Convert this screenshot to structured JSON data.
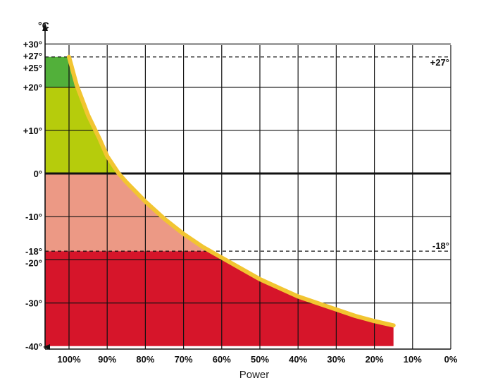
{
  "chart_data": {
    "type": "area",
    "xlabel": "Power",
    "y_unit": "°C",
    "x_ticks": [
      "100%",
      "90%",
      "80%",
      "70%",
      "60%",
      "50%",
      "40%",
      "30%",
      "20%",
      "10%",
      "0%"
    ],
    "x_tick_values": [
      100,
      90,
      80,
      70,
      60,
      50,
      40,
      30,
      20,
      10,
      0
    ],
    "y_ticks": [
      "+30°",
      "+27°",
      "+25°",
      "+20°",
      "+10°",
      "0°",
      "-10°",
      "-18°",
      "-20°",
      "-30°",
      "-40°"
    ],
    "y_tick_values": [
      30,
      27,
      25,
      20,
      10,
      0,
      -10,
      -18,
      -20,
      -30,
      -40
    ],
    "xlim": [
      105,
      0
    ],
    "ylim": [
      -40,
      30
    ],
    "reference_lines": [
      {
        "y": 27,
        "label": "+27°"
      },
      {
        "y": -18,
        "label": "-18°"
      }
    ],
    "curve": {
      "color": "#f2c531",
      "x": [
        100,
        98,
        95,
        92,
        90,
        87,
        85,
        80,
        75,
        70,
        65,
        60,
        55,
        50,
        45,
        40,
        35,
        30,
        25,
        20,
        15
      ],
      "y": [
        27,
        20.5,
        13.5,
        8,
        4,
        0,
        -2,
        -6.5,
        -10.5,
        -14,
        -17,
        -19.5,
        -22,
        -24.5,
        -26.5,
        -28.5,
        -30,
        -31.5,
        -33,
        -34.2,
        -35.2
      ]
    },
    "bands": [
      {
        "from": 20,
        "to": 27,
        "color": "#52b03a"
      },
      {
        "from": 0,
        "to": 20,
        "color": "#b6cc0c"
      },
      {
        "from": -18,
        "to": 0,
        "color": "#ec9985"
      },
      {
        "from": -40,
        "to": -18,
        "color": "#d6152a"
      }
    ],
    "grid": true
  }
}
